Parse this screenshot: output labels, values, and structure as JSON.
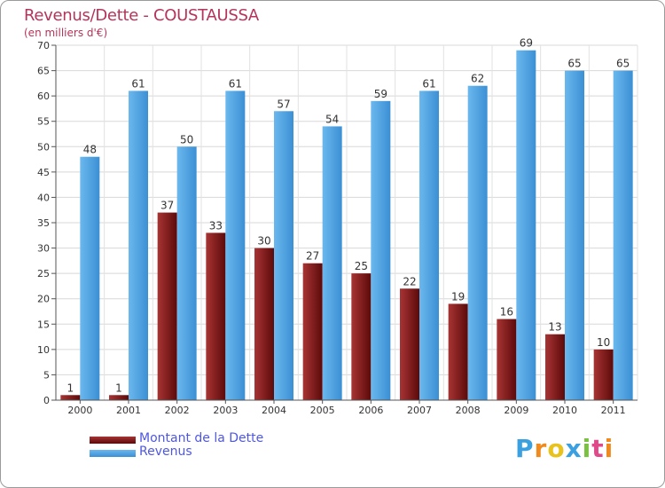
{
  "chart_data": {
    "type": "bar",
    "title": "Revenus/Dette - COUSTAUSSA",
    "subtitle": "(en milliers d'€)",
    "categories": [
      "2000",
      "2001",
      "2002",
      "2003",
      "2004",
      "2005",
      "2006",
      "2007",
      "2008",
      "2009",
      "2010",
      "2011"
    ],
    "series": [
      {
        "name": "Montant de la Dette",
        "color": "#7a1414",
        "values": [
          1,
          1,
          37,
          33,
          30,
          27,
          25,
          22,
          19,
          16,
          13,
          10
        ]
      },
      {
        "name": "Revenus",
        "color": "#4fa3e3",
        "values": [
          48,
          61,
          50,
          61,
          57,
          54,
          59,
          61,
          62,
          69,
          65,
          65
        ]
      }
    ],
    "ylim": [
      0,
      70
    ],
    "yticks": [
      0,
      5,
      10,
      15,
      20,
      25,
      30,
      35,
      40,
      45,
      50,
      55,
      60,
      65,
      70
    ],
    "grid": true,
    "legend_position": "bottom-left"
  },
  "logo": {
    "text": "Proxiti",
    "colors": [
      "#3aa0e0",
      "#f08a1e",
      "#e8c31e",
      "#3aa0e0",
      "#7ac142",
      "#e04a8a",
      "#f08a1e"
    ]
  }
}
